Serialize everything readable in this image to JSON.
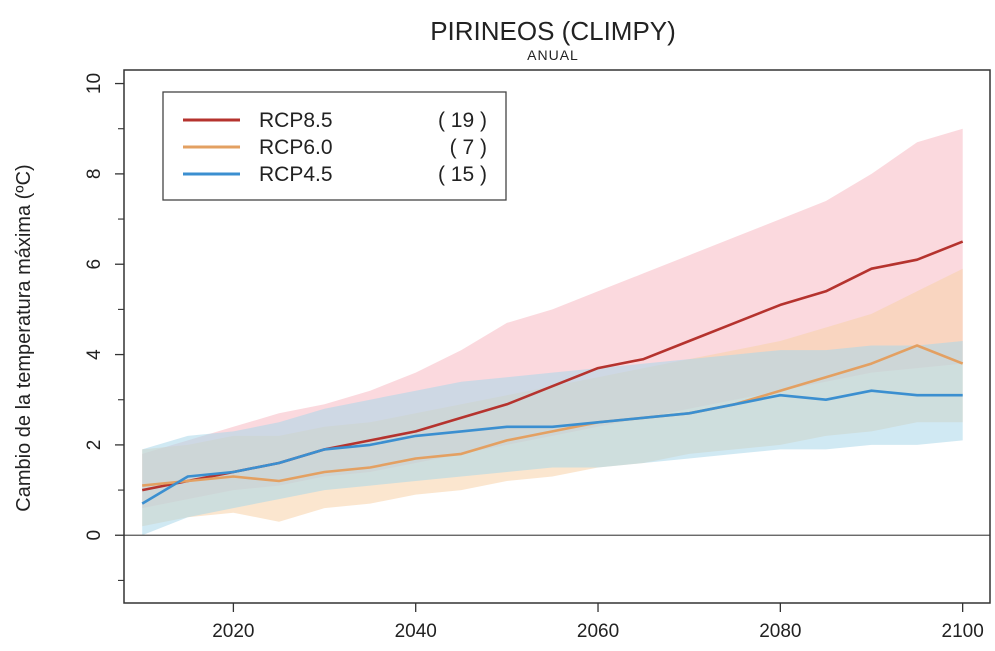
{
  "chart_data": {
    "type": "line",
    "title": "PIRINEOS (CLIMPY)",
    "subtitle": "ANUAL",
    "xlabel": "",
    "ylabel": "Cambio de la temperatura máxima (ºC)",
    "xlim": [
      2008,
      2103
    ],
    "ylim": [
      -1.5,
      10.3
    ],
    "x_ticks": [
      2020,
      2040,
      2060,
      2080,
      2100
    ],
    "y_ticks": [
      0,
      2,
      4,
      6,
      8,
      10
    ],
    "y_minor_ticks": [
      -1,
      1,
      3,
      5,
      7,
      9
    ],
    "zero_line": true,
    "grid": false,
    "legend_position": "top-left",
    "series": [
      {
        "name": "RCP8.5",
        "count": "( 19 )",
        "color": "#b5332e",
        "band_color": "#f7b9c3",
        "x": [
          2010,
          2015,
          2020,
          2025,
          2030,
          2035,
          2040,
          2045,
          2050,
          2055,
          2060,
          2065,
          2070,
          2075,
          2080,
          2085,
          2090,
          2095,
          2100
        ],
        "values": [
          1.0,
          1.2,
          1.4,
          1.6,
          1.9,
          2.1,
          2.3,
          2.6,
          2.9,
          3.3,
          3.7,
          3.9,
          4.3,
          4.7,
          5.1,
          5.4,
          5.9,
          6.1,
          6.5
        ],
        "upper": [
          1.8,
          2.1,
          2.4,
          2.7,
          2.9,
          3.2,
          3.6,
          4.1,
          4.7,
          5.0,
          5.4,
          5.8,
          6.2,
          6.6,
          7.0,
          7.4,
          8.0,
          8.7,
          9.0
        ],
        "lower": [
          0.6,
          0.8,
          1.0,
          1.1,
          1.3,
          1.4,
          1.6,
          1.8,
          2.0,
          2.2,
          2.4,
          2.6,
          2.8,
          3.0,
          3.2,
          3.4,
          3.6,
          3.7,
          3.8
        ]
      },
      {
        "name": "RCP6.0",
        "count": "(  7 )",
        "color": "#e3a062",
        "band_color": "#f8d2a8",
        "x": [
          2010,
          2015,
          2020,
          2025,
          2030,
          2035,
          2040,
          2045,
          2050,
          2055,
          2060,
          2065,
          2070,
          2075,
          2080,
          2085,
          2090,
          2095,
          2100
        ],
        "values": [
          1.1,
          1.2,
          1.3,
          1.2,
          1.4,
          1.5,
          1.7,
          1.8,
          2.1,
          2.3,
          2.5,
          2.6,
          2.7,
          2.9,
          3.2,
          3.5,
          3.8,
          4.2,
          3.8
        ],
        "upper": [
          1.9,
          2.0,
          2.2,
          2.2,
          2.4,
          2.5,
          2.7,
          2.9,
          3.1,
          3.3,
          3.5,
          3.7,
          3.9,
          4.1,
          4.3,
          4.6,
          4.9,
          5.4,
          5.9
        ],
        "lower": [
          0.2,
          0.4,
          0.5,
          0.3,
          0.6,
          0.7,
          0.9,
          1.0,
          1.2,
          1.3,
          1.5,
          1.6,
          1.8,
          1.9,
          2.0,
          2.2,
          2.3,
          2.5,
          2.5
        ]
      },
      {
        "name": "RCP4.5",
        "count": "( 15 )",
        "color": "#3b8fd0",
        "band_color": "#a9d7ea",
        "x": [
          2010,
          2015,
          2020,
          2025,
          2030,
          2035,
          2040,
          2045,
          2050,
          2055,
          2060,
          2065,
          2070,
          2075,
          2080,
          2085,
          2090,
          2095,
          2100
        ],
        "values": [
          0.7,
          1.3,
          1.4,
          1.6,
          1.9,
          2.0,
          2.2,
          2.3,
          2.4,
          2.4,
          2.5,
          2.6,
          2.7,
          2.9,
          3.1,
          3.0,
          3.2,
          3.1,
          3.1
        ],
        "upper": [
          1.9,
          2.2,
          2.3,
          2.5,
          2.8,
          3.0,
          3.2,
          3.4,
          3.5,
          3.6,
          3.7,
          3.8,
          3.9,
          4.0,
          4.1,
          4.1,
          4.2,
          4.2,
          4.3
        ],
        "lower": [
          0.0,
          0.4,
          0.6,
          0.8,
          1.0,
          1.1,
          1.2,
          1.3,
          1.4,
          1.5,
          1.5,
          1.6,
          1.7,
          1.8,
          1.9,
          1.9,
          2.0,
          2.0,
          2.1
        ]
      }
    ]
  }
}
